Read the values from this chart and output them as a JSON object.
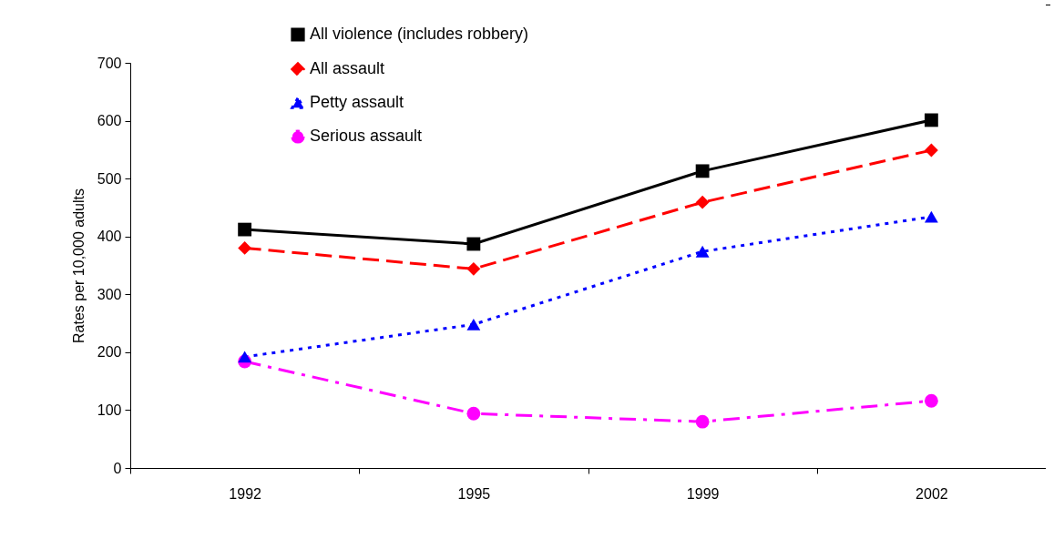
{
  "chart_data": {
    "type": "line",
    "ylabel": "Rates per 10,000 adults",
    "categories": [
      "1992",
      "1995",
      "1999",
      "2002"
    ],
    "series": [
      {
        "name": "All violence (includes robbery)",
        "color": "#000000",
        "marker": "square",
        "line_style": "solid",
        "values": [
          412,
          387,
          513,
          601
        ]
      },
      {
        "name": "All assault",
        "color": "#ff0000",
        "marker": "diamond",
        "line_style": "dashed",
        "values": [
          380,
          344,
          459,
          549
        ]
      },
      {
        "name": "Petty assault",
        "color": "#0000ff",
        "marker": "triangle",
        "line_style": "dotted",
        "values": [
          192,
          248,
          374,
          434
        ]
      },
      {
        "name": "Serious assault",
        "color": "#ff00ff",
        "marker": "circle",
        "line_style": "dashdot",
        "values": [
          184,
          94,
          80,
          116
        ]
      }
    ],
    "ylim": [
      0,
      700
    ],
    "yticks": [
      0,
      100,
      200,
      300,
      400,
      500,
      600,
      700
    ],
    "grid": false,
    "legend": "top"
  }
}
